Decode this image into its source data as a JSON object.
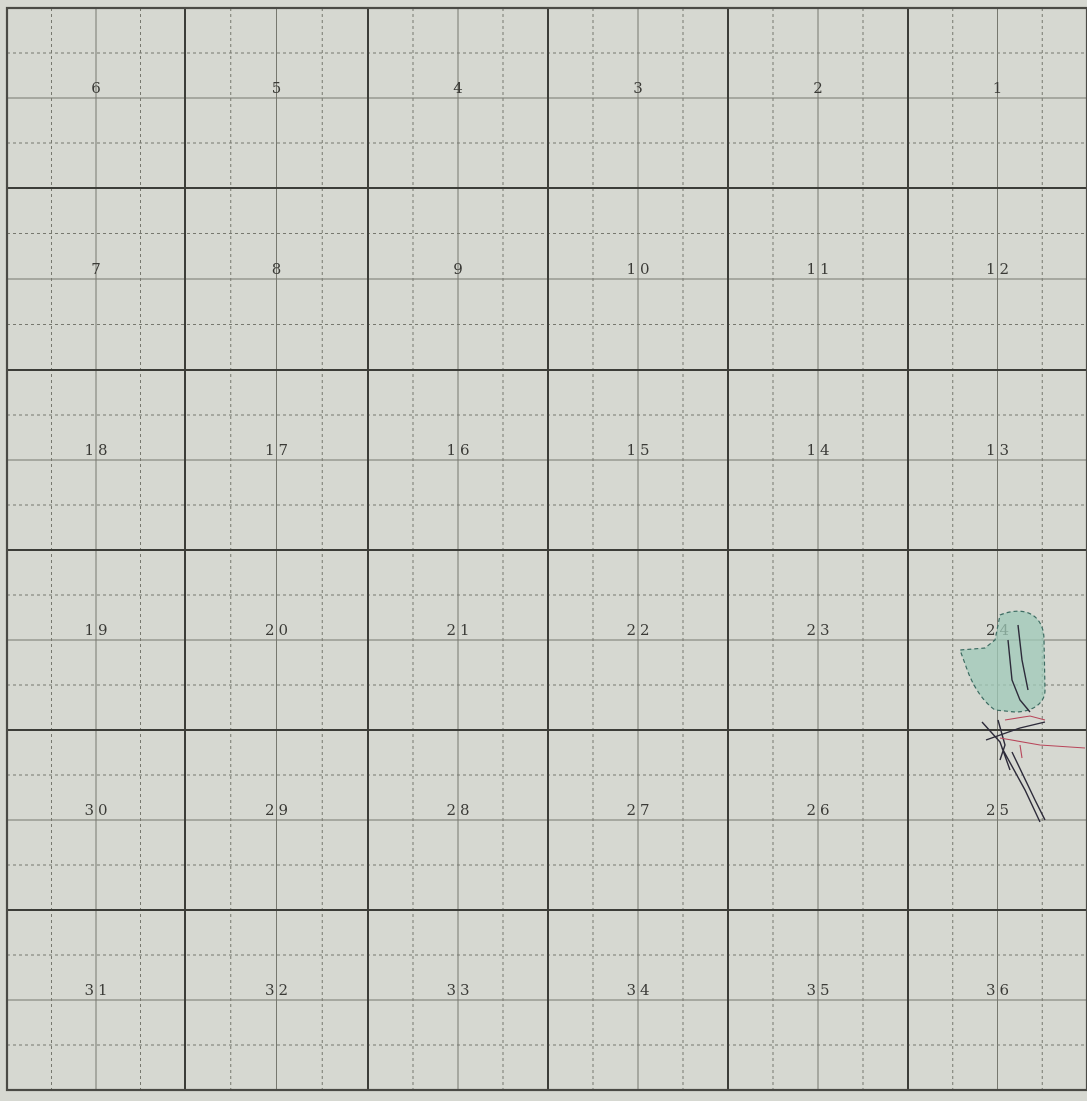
{
  "township_plat": {
    "sections": [
      {
        "number": "6"
      },
      {
        "number": "5"
      },
      {
        "number": "4"
      },
      {
        "number": "3"
      },
      {
        "number": "2"
      },
      {
        "number": "1"
      },
      {
        "number": "7"
      },
      {
        "number": "8"
      },
      {
        "number": "9"
      },
      {
        "number": "10"
      },
      {
        "number": "11"
      },
      {
        "number": "12"
      },
      {
        "number": "18"
      },
      {
        "number": "17"
      },
      {
        "number": "16"
      },
      {
        "number": "15"
      },
      {
        "number": "14"
      },
      {
        "number": "13"
      },
      {
        "number": "19"
      },
      {
        "number": "20"
      },
      {
        "number": "21"
      },
      {
        "number": "22"
      },
      {
        "number": "23"
      },
      {
        "number": "24"
      },
      {
        "number": "30"
      },
      {
        "number": "29"
      },
      {
        "number": "28"
      },
      {
        "number": "27"
      },
      {
        "number": "26"
      },
      {
        "number": "25"
      },
      {
        "number": "31"
      },
      {
        "number": "32"
      },
      {
        "number": "33"
      },
      {
        "number": "34"
      },
      {
        "number": "35"
      },
      {
        "number": "36"
      }
    ],
    "layout": {
      "rows": 6,
      "columns": 6
    },
    "colors": {
      "paper": "#d6d8d1",
      "grid_lines": "#3c3d38",
      "shaded_area": "#9fcab8",
      "ink": "#2d2b3a",
      "red_ink": "#b8465a"
    }
  }
}
